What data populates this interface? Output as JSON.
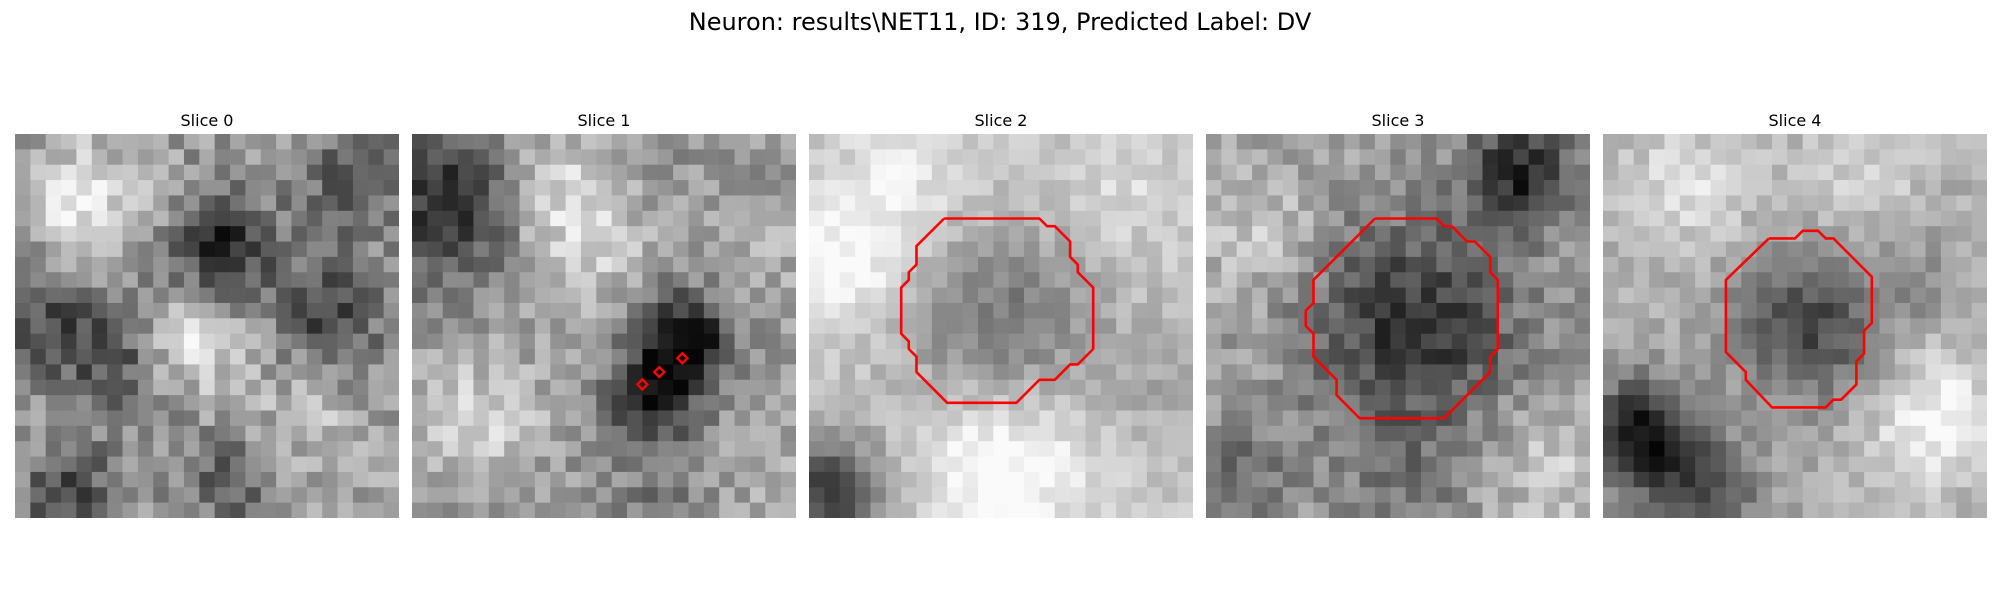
{
  "figure": {
    "title": "Neuron: results\\NET11, ID: 319, Predicted Label: DV",
    "contour_color": "#ff0000"
  },
  "panels": [
    {
      "title": "Slice 0"
    },
    {
      "title": "Slice 1"
    },
    {
      "title": "Slice 2"
    },
    {
      "title": "Slice 3"
    },
    {
      "title": "Slice 4"
    }
  ]
}
